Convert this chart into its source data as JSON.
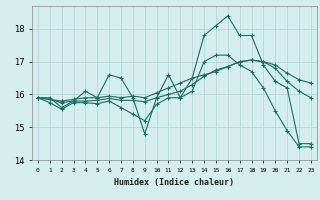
{
  "xlabel": "Humidex (Indice chaleur)",
  "bg_color": "#d4eeed",
  "grid_color": "#aad4d0",
  "line_color": "#1a6e60",
  "xlim": [
    -0.5,
    23.5
  ],
  "ylim": [
    14.0,
    18.7
  ],
  "yticks": [
    14,
    15,
    16,
    17,
    18
  ],
  "xtick_labels": [
    "0",
    "1",
    "2",
    "3",
    "4",
    "5",
    "6",
    "7",
    "8",
    "9",
    "10",
    "11",
    "12",
    "13",
    "14",
    "15",
    "16",
    "17",
    "18",
    "19",
    "20",
    "21",
    "22",
    "23"
  ],
  "series": [
    [
      15.9,
      15.9,
      15.6,
      15.8,
      16.1,
      15.9,
      16.6,
      16.5,
      15.9,
      14.8,
      15.9,
      16.6,
      15.9,
      16.5,
      17.8,
      18.1,
      18.4,
      17.8,
      17.8,
      16.9,
      16.4,
      16.2,
      14.5,
      14.5
    ],
    [
      15.9,
      15.85,
      15.8,
      15.85,
      15.9,
      15.9,
      15.95,
      15.9,
      15.95,
      15.9,
      16.05,
      16.2,
      16.35,
      16.5,
      16.6,
      16.7,
      16.85,
      17.0,
      17.05,
      17.0,
      16.8,
      16.4,
      16.1,
      15.9
    ],
    [
      15.9,
      15.85,
      15.75,
      15.8,
      15.8,
      15.82,
      15.88,
      15.82,
      15.82,
      15.78,
      15.9,
      16.0,
      16.1,
      16.3,
      16.55,
      16.75,
      16.85,
      17.0,
      17.05,
      17.0,
      16.9,
      16.65,
      16.45,
      16.35
    ],
    [
      15.9,
      15.75,
      15.55,
      15.75,
      15.75,
      15.72,
      15.8,
      15.6,
      15.4,
      15.2,
      15.7,
      15.9,
      15.9,
      16.1,
      17.0,
      17.2,
      17.2,
      16.9,
      16.7,
      16.2,
      15.5,
      14.9,
      14.4,
      14.4
    ]
  ]
}
